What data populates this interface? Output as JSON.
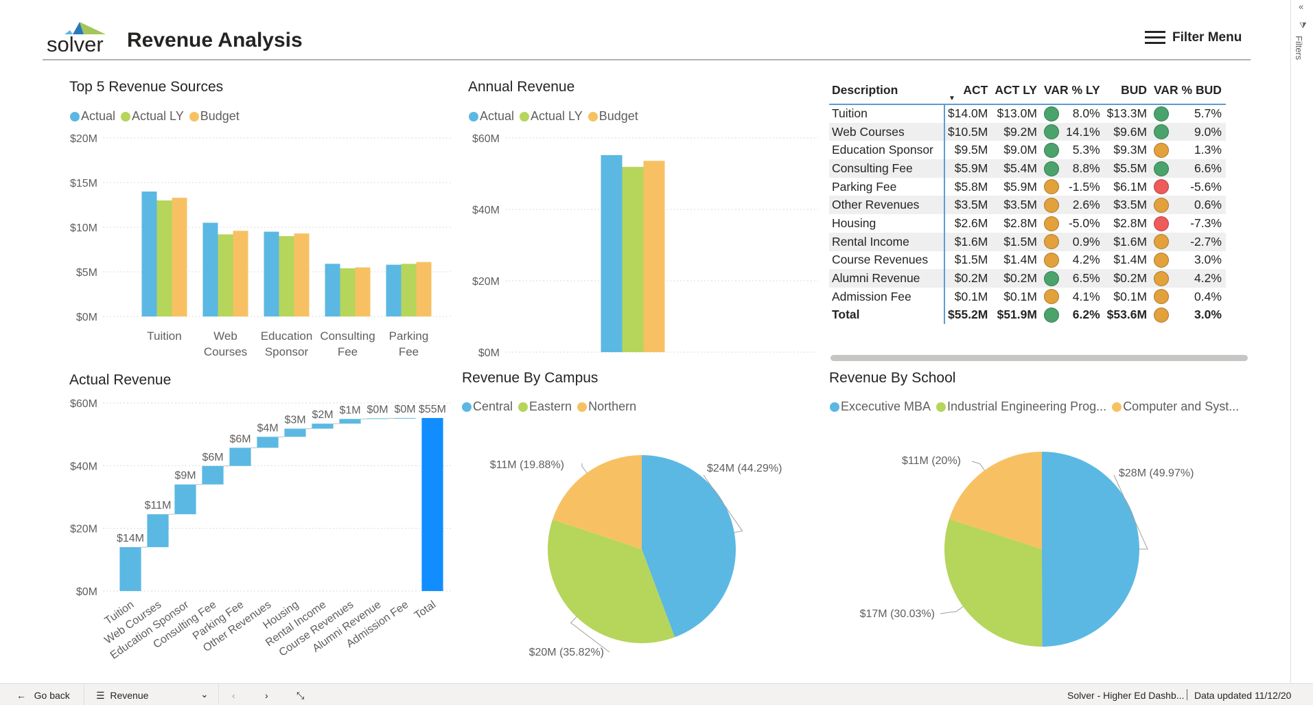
{
  "app": {
    "logo_text": "solver",
    "title": "Revenue Analysis",
    "filter_menu_label": "Filter Menu",
    "filters_pane_label": "Filters"
  },
  "colors": {
    "actual": "#5bb8e3",
    "actual_ly": "#b6d55b",
    "budget": "#f7c163",
    "total_bar": "#118dff",
    "ind_green": "#4aa36b",
    "ind_orange": "#e3a13b",
    "ind_red": "#ef5a5a"
  },
  "top5": {
    "title": "Top 5 Revenue Sources",
    "legend": [
      "Actual",
      "Actual LY",
      "Budget"
    ]
  },
  "annual": {
    "title": "Annual Revenue",
    "legend": [
      "Actual",
      "Actual LY",
      "Budget"
    ]
  },
  "actual_revenue": {
    "title": "Actual Revenue"
  },
  "campus": {
    "title": "Revenue By Campus",
    "legend": [
      "Central",
      "Eastern",
      "Northern"
    ]
  },
  "school": {
    "title": "Revenue By School",
    "legend": [
      "Excecutive MBA",
      "Industrial Engineering Prog...",
      "Computer and Syst..."
    ]
  },
  "table": {
    "headers": [
      "Description",
      "ACT",
      "ACT LY",
      "VAR % LY",
      "BUD",
      "VAR % BUD"
    ],
    "rows": [
      {
        "desc": "Tuition",
        "act": "$14.0M",
        "act_ly": "$13.0M",
        "ind_ly": "green",
        "var_ly": "8.0%",
        "bud": "$13.3M",
        "ind_bud": "green",
        "var_bud": "5.7%"
      },
      {
        "desc": "Web Courses",
        "act": "$10.5M",
        "act_ly": "$9.2M",
        "ind_ly": "green",
        "var_ly": "14.1%",
        "bud": "$9.6M",
        "ind_bud": "green",
        "var_bud": "9.0%"
      },
      {
        "desc": "Education Sponsor",
        "act": "$9.5M",
        "act_ly": "$9.0M",
        "ind_ly": "green",
        "var_ly": "5.3%",
        "bud": "$9.3M",
        "ind_bud": "orange",
        "var_bud": "1.3%"
      },
      {
        "desc": "Consulting Fee",
        "act": "$5.9M",
        "act_ly": "$5.4M",
        "ind_ly": "green",
        "var_ly": "8.8%",
        "bud": "$5.5M",
        "ind_bud": "green",
        "var_bud": "6.6%"
      },
      {
        "desc": "Parking Fee",
        "act": "$5.8M",
        "act_ly": "$5.9M",
        "ind_ly": "orange",
        "var_ly": "-1.5%",
        "bud": "$6.1M",
        "ind_bud": "red",
        "var_bud": "-5.6%"
      },
      {
        "desc": "Other Revenues",
        "act": "$3.5M",
        "act_ly": "$3.5M",
        "ind_ly": "orange",
        "var_ly": "2.6%",
        "bud": "$3.5M",
        "ind_bud": "orange",
        "var_bud": "0.6%"
      },
      {
        "desc": "Housing",
        "act": "$2.6M",
        "act_ly": "$2.8M",
        "ind_ly": "orange",
        "var_ly": "-5.0%",
        "bud": "$2.8M",
        "ind_bud": "red",
        "var_bud": "-7.3%"
      },
      {
        "desc": "Rental Income",
        "act": "$1.6M",
        "act_ly": "$1.5M",
        "ind_ly": "orange",
        "var_ly": "0.9%",
        "bud": "$1.6M",
        "ind_bud": "orange",
        "var_bud": "-2.7%"
      },
      {
        "desc": "Course Revenues",
        "act": "$1.5M",
        "act_ly": "$1.4M",
        "ind_ly": "orange",
        "var_ly": "4.2%",
        "bud": "$1.4M",
        "ind_bud": "orange",
        "var_bud": "3.0%"
      },
      {
        "desc": "Alumni Revenue",
        "act": "$0.2M",
        "act_ly": "$0.2M",
        "ind_ly": "green",
        "var_ly": "6.5%",
        "bud": "$0.2M",
        "ind_bud": "orange",
        "var_bud": "4.2%"
      },
      {
        "desc": "Admission Fee",
        "act": "$0.1M",
        "act_ly": "$0.1M",
        "ind_ly": "orange",
        "var_ly": "4.1%",
        "bud": "$0.1M",
        "ind_bud": "orange",
        "var_bud": "0.4%"
      }
    ],
    "total": {
      "desc": "Total",
      "act": "$55.2M",
      "act_ly": "$51.9M",
      "ind_ly": "green",
      "var_ly": "6.2%",
      "bud": "$53.6M",
      "ind_bud": "orange",
      "var_bud": "3.0%"
    }
  },
  "footer": {
    "go_back": "Go back",
    "page_name": "Revenue",
    "report_name": "Solver - Higher Ed Dashb...",
    "data_updated": "Data updated 11/12/20"
  },
  "chart_data": [
    {
      "id": "top5",
      "type": "bar",
      "title": "Top 5 Revenue Sources",
      "categories": [
        [
          "Tuition"
        ],
        [
          "Web",
          "Courses"
        ],
        [
          "Education",
          "Sponsor"
        ],
        [
          "Consulting",
          "Fee"
        ],
        [
          "Parking",
          "Fee"
        ]
      ],
      "series": [
        {
          "name": "Actual",
          "values": [
            14.0,
            10.5,
            9.5,
            5.9,
            5.8
          ]
        },
        {
          "name": "Actual LY",
          "values": [
            13.0,
            9.2,
            9.0,
            5.4,
            5.9
          ]
        },
        {
          "name": "Budget",
          "values": [
            13.3,
            9.6,
            9.3,
            5.5,
            6.1
          ]
        }
      ],
      "ylim": [
        0,
        20
      ],
      "yticks": [
        {
          "v": 0,
          "label": "$0M"
        },
        {
          "v": 5,
          "label": "$5M"
        },
        {
          "v": 10,
          "label": "$10M"
        },
        {
          "v": 15,
          "label": "$15M"
        },
        {
          "v": 20,
          "label": "$20M"
        }
      ],
      "legend": "top-left",
      "grid": true
    },
    {
      "id": "annual",
      "type": "bar",
      "title": "Annual Revenue",
      "categories": [
        [
          ""
        ]
      ],
      "series": [
        {
          "name": "Actual",
          "values": [
            55.2
          ]
        },
        {
          "name": "Actual LY",
          "values": [
            51.9
          ]
        },
        {
          "name": "Budget",
          "values": [
            53.6
          ]
        }
      ],
      "ylim": [
        0,
        60
      ],
      "yticks": [
        {
          "v": 0,
          "label": "$0M"
        },
        {
          "v": 20,
          "label": "$20M"
        },
        {
          "v": 40,
          "label": "$40M"
        },
        {
          "v": 60,
          "label": "$60M"
        }
      ],
      "legend": "top-left",
      "grid": true
    },
    {
      "id": "waterfall",
      "type": "bar",
      "subtype": "waterfall",
      "title": "Actual Revenue",
      "categories": [
        "Tuition",
        "Web Courses",
        "Education Sponsor",
        "Consulting Fee",
        "Parking Fee",
        "Other Revenues",
        "Housing",
        "Rental Income",
        "Course Revenues",
        "Alumni Revenue",
        "Admission Fee",
        "Total"
      ],
      "values": [
        14.0,
        10.5,
        9.5,
        5.9,
        5.8,
        3.5,
        2.6,
        1.6,
        1.5,
        0.2,
        0.1,
        55.2
      ],
      "data_labels": [
        "$14M",
        "$11M",
        "$9M",
        "$6M",
        "$6M",
        "$4M",
        "$3M",
        "$2M",
        "$1M",
        "$0M",
        "$0M",
        "$55M"
      ],
      "ylim": [
        0,
        60
      ],
      "yticks": [
        {
          "v": 0,
          "label": "$0M"
        },
        {
          "v": 20,
          "label": "$20M"
        },
        {
          "v": 40,
          "label": "$40M"
        },
        {
          "v": 60,
          "label": "$60M"
        }
      ],
      "grid": true
    },
    {
      "id": "campus",
      "type": "pie",
      "title": "Revenue By Campus",
      "slices": [
        {
          "name": "Central",
          "value": 44.29,
          "label": "$24M (44.29%)"
        },
        {
          "name": "Eastern",
          "value": 35.82,
          "label": "$20M (35.82%)"
        },
        {
          "name": "Northern",
          "value": 19.88,
          "label": "$11M (19.88%)"
        }
      ]
    },
    {
      "id": "school",
      "type": "pie",
      "title": "Revenue By School",
      "slices": [
        {
          "name": "Excecutive MBA",
          "value": 49.97,
          "label": "$28M (49.97%)"
        },
        {
          "name": "Industrial Engineering Prog...",
          "value": 30.03,
          "label": "$17M (30.03%)"
        },
        {
          "name": "Computer and Syst...",
          "value": 20,
          "label": "$11M (20%)"
        }
      ]
    }
  ]
}
